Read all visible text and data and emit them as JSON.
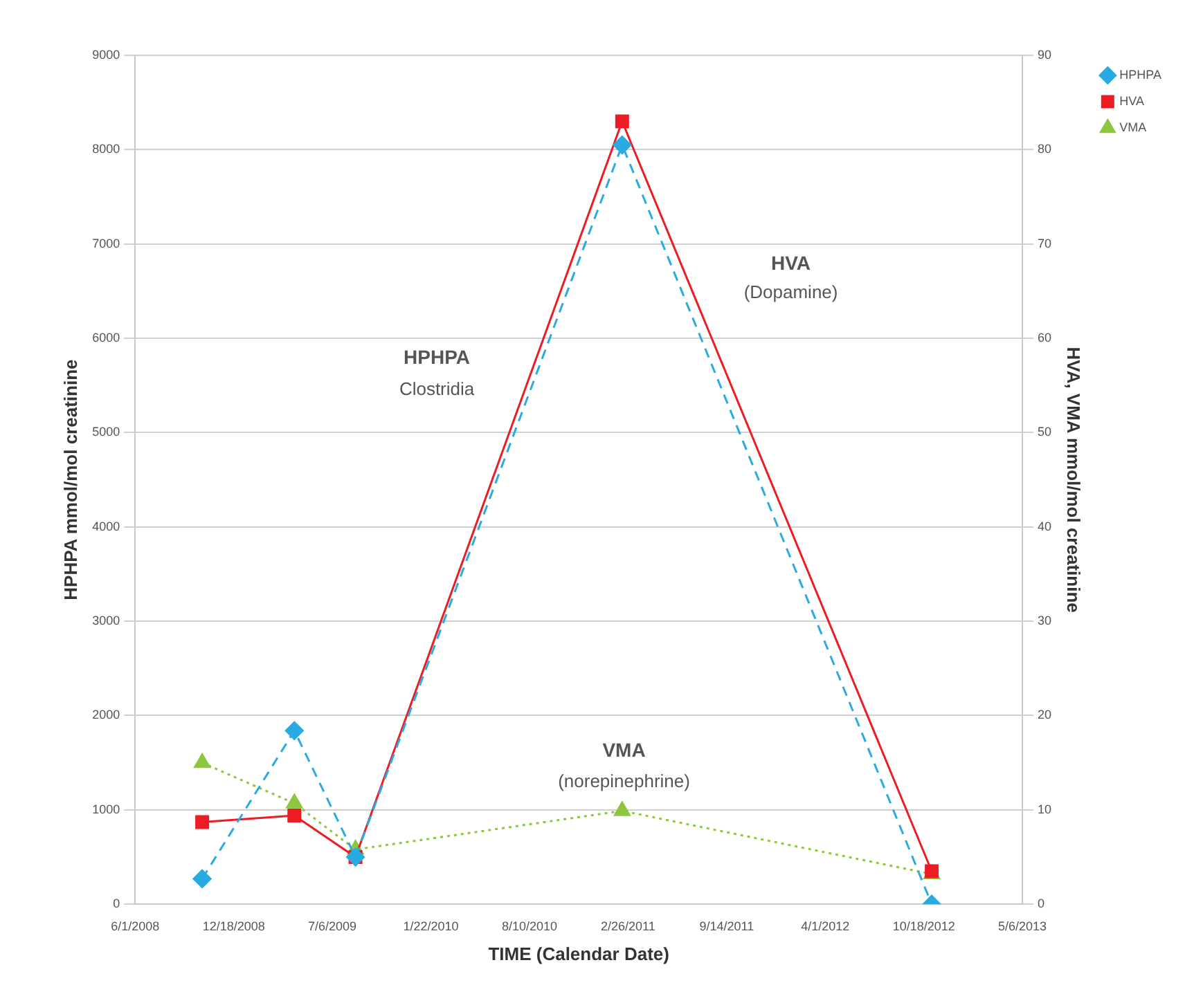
{
  "chart_data": {
    "type": "line",
    "xlabel": "TIME (Calendar Date)",
    "ylabel": "HPHPA mmol/mol creatinine",
    "y2label": "HVA, VMA mmol/mol creatinine",
    "xlim": [
      "2008-06-01",
      "2013-05-06"
    ],
    "xticks": [
      {
        "value": "2008-06-01",
        "label": "6/1/2008"
      },
      {
        "value": "2008-12-18",
        "label": "12/18/2008"
      },
      {
        "value": "2009-07-06",
        "label": "7/6/2009"
      },
      {
        "value": "2010-01-22",
        "label": "1/22/2010"
      },
      {
        "value": "2010-08-10",
        "label": "8/10/2010"
      },
      {
        "value": "2011-02-26",
        "label": "2/26/2011"
      },
      {
        "value": "2011-09-14",
        "label": "9/14/2011"
      },
      {
        "value": "2012-04-01",
        "label": "4/1/2012"
      },
      {
        "value": "2012-10-18",
        "label": "10/18/2012"
      },
      {
        "value": "2013-05-06",
        "label": "5/6/2013"
      }
    ],
    "ylim": [
      0,
      9000
    ],
    "yticks": [
      0,
      1000,
      2000,
      3000,
      4000,
      5000,
      6000,
      7000,
      8000,
      9000
    ],
    "y2lim": [
      0,
      90
    ],
    "y2ticks": [
      0,
      10,
      20,
      30,
      40,
      50,
      60,
      70,
      80,
      90
    ],
    "x": [
      "2008-10-15",
      "2009-04-20",
      "2009-08-22",
      "2011-02-14",
      "2012-11-03"
    ],
    "series": [
      {
        "name": "HPHPA",
        "color": "#29abe2",
        "values": [
          270,
          1840,
          500,
          8050,
          0
        ],
        "marker": "diamond",
        "line_style": "dashed"
      },
      {
        "name": "HVA",
        "color": "#ed1c24",
        "values": [
          8.7,
          9.4,
          5.0,
          83,
          3.5
        ],
        "axis": "y2",
        "marker": "square",
        "line_style": "solid"
      },
      {
        "name": "VMA",
        "color": "#8dc63f",
        "values": [
          15,
          10.7,
          5.8,
          9.9,
          3.2
        ],
        "axis": "y2",
        "marker": "triangle",
        "line_style": "dotted"
      }
    ],
    "annotations": [
      "HPHPA",
      "Clostridia",
      "HVA",
      "(Dopamine)",
      "VMA",
      "(norepinephrine)"
    ],
    "grid": "y",
    "legend": "top right"
  }
}
